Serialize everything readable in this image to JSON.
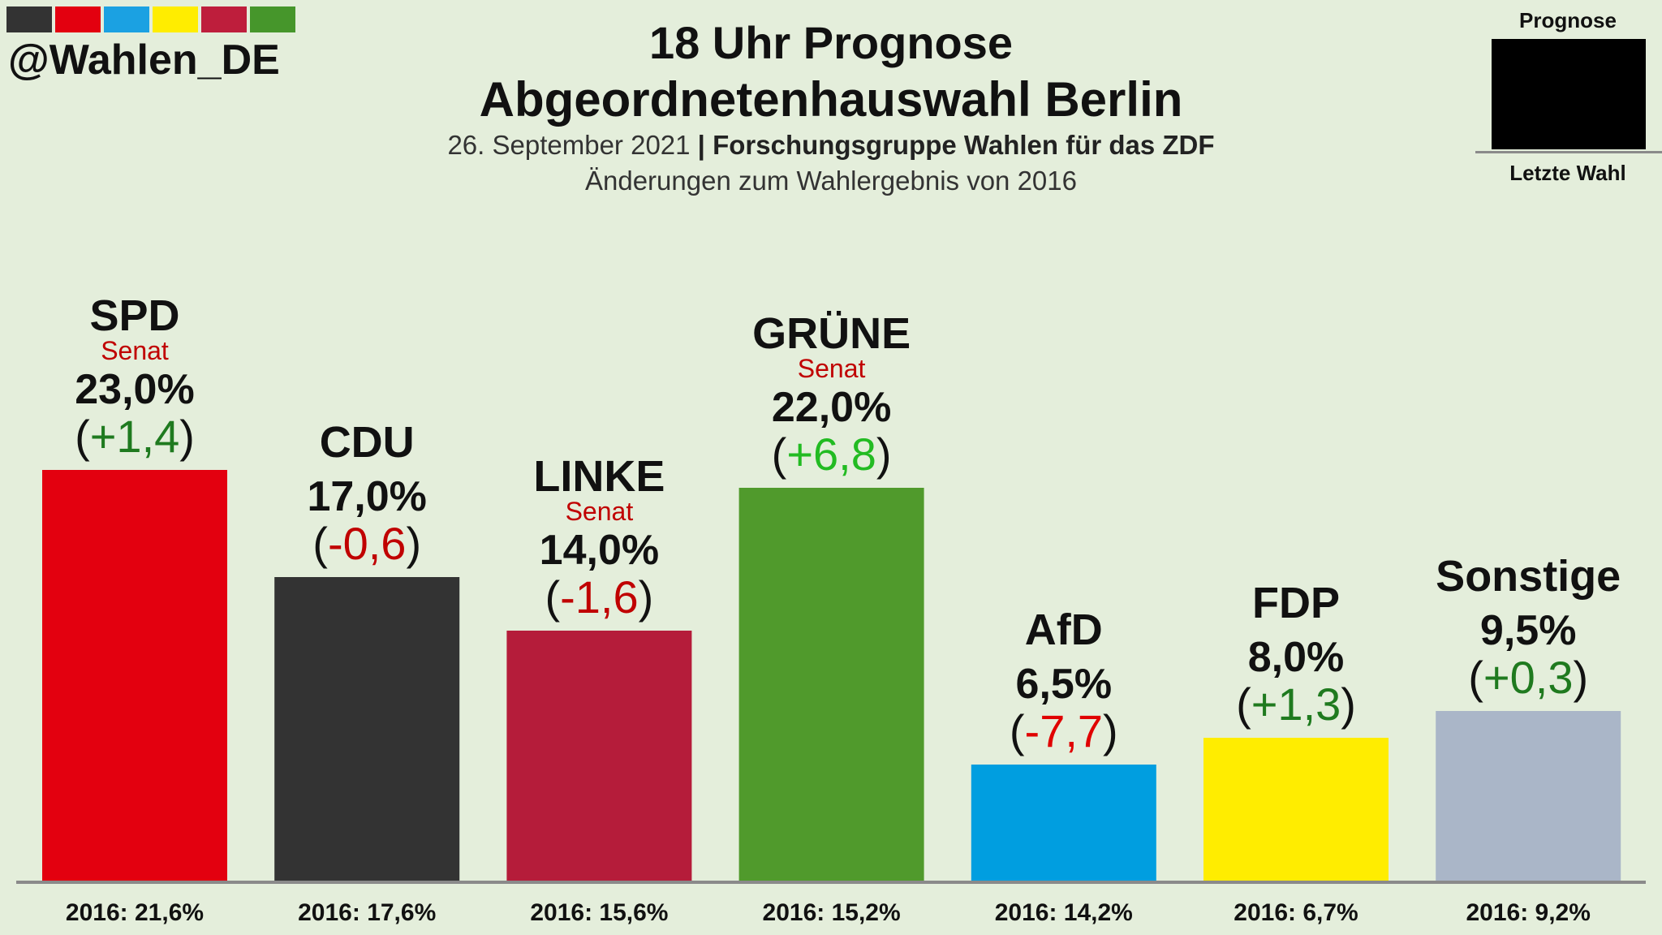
{
  "header": {
    "handle": "@Wahlen_DE",
    "title_line1": "18 Uhr Prognose",
    "title_line2": "Abgeordnetenhauswahl Berlin",
    "date": "26. September 2021",
    "separator": " | ",
    "source": "Forschungsgruppe Wahlen für das ZDF",
    "subtitle": "Änderungen zum Wahlergebnis von 2016",
    "strip_colors": [
      "#333333",
      "#e3000f",
      "#1ba1e2",
      "#ffed00",
      "#be1e3c",
      "#46962b"
    ]
  },
  "legend": {
    "top_label": "Prognose",
    "bottom_label": "Letzte Wahl"
  },
  "chart_data": {
    "type": "bar",
    "title": "18 Uhr Prognose Abgeordnetenhauswahl Berlin",
    "ylabel": "",
    "xlabel": "",
    "ylim": [
      0,
      30
    ],
    "categories": [
      "SPD",
      "CDU",
      "LINKE",
      "GRÜNE",
      "AfD",
      "FDP",
      "Sonstige"
    ],
    "values": [
      23.0,
      17.0,
      14.0,
      22.0,
      6.5,
      8.0,
      9.5
    ],
    "value_labels": [
      "23,0%",
      "17,0%",
      "14,0%",
      "22,0%",
      "6,5%",
      "8,0%",
      "9,5%"
    ],
    "changes": [
      "+1,4",
      "-0,6",
      "-1,6",
      "+6,8",
      "-7,7",
      "+1,3",
      "+0,3"
    ],
    "change_colors": [
      "#1f7a1f",
      "#c00000",
      "#c00000",
      "#22bb22",
      "#e00000",
      "#1f7a1f",
      "#1f7a1f"
    ],
    "government": [
      "Senat",
      "",
      "Senat",
      "Senat",
      "",
      "",
      ""
    ],
    "previous_labels": [
      "2016: 21,6%",
      "2016: 17,6%",
      "2016: 15,6%",
      "2016: 15,2%",
      "2016: 14,2%",
      "2016: 6,7%",
      "2016: 9,2%"
    ],
    "colors": [
      "#e3000f",
      "#333333",
      "#b51c3a",
      "#509a2c",
      "#009ee0",
      "#ffed00",
      "#aab6c8"
    ]
  }
}
